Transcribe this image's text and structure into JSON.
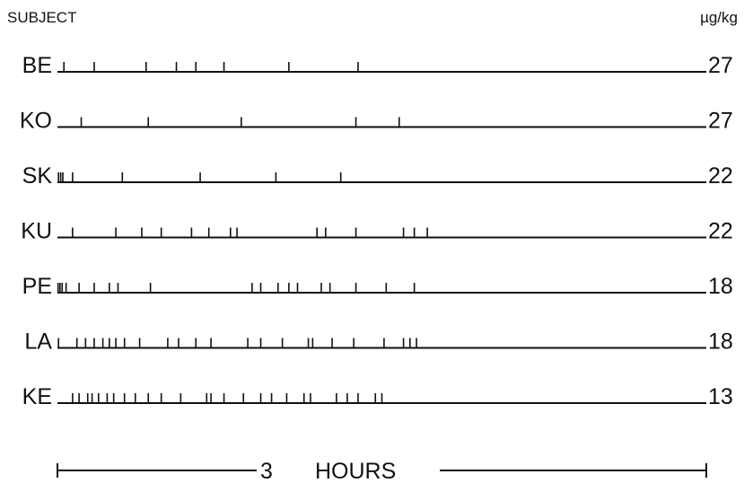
{
  "chart_data": {
    "type": "event-raster",
    "header_left": "SUBJECT",
    "header_right": "µg/kg",
    "x_units": "hours",
    "x_range": [
      0,
      3.0
    ],
    "rows": [
      {
        "subject": "BE",
        "dose": "27",
        "events": [
          0.03,
          0.17,
          0.41,
          0.55,
          0.64,
          0.77,
          1.07,
          1.39
        ]
      },
      {
        "subject": "KO",
        "dose": "27",
        "events": [
          0.11,
          0.42,
          0.85,
          1.38,
          1.58
        ]
      },
      {
        "subject": "SK",
        "dose": "22",
        "events": [
          0.005,
          0.015,
          0.025,
          0.07,
          0.3,
          0.66,
          1.01,
          1.31
        ]
      },
      {
        "subject": "KU",
        "dose": "22",
        "events": [
          0.07,
          0.27,
          0.39,
          0.48,
          0.62,
          0.7,
          0.8,
          0.83,
          1.2,
          1.24,
          1.38,
          1.6,
          1.65,
          1.71
        ]
      },
      {
        "subject": "PE",
        "dose": "18",
        "events": [
          0.003,
          0.012,
          0.022,
          0.04,
          0.1,
          0.17,
          0.24,
          0.28,
          0.43,
          0.9,
          0.94,
          1.02,
          1.07,
          1.11,
          1.22,
          1.26,
          1.38,
          1.52,
          1.65
        ]
      },
      {
        "subject": "LA",
        "dose": "18",
        "events": [
          0.005,
          0.09,
          0.13,
          0.17,
          0.21,
          0.24,
          0.27,
          0.31,
          0.38,
          0.51,
          0.56,
          0.64,
          0.71,
          0.88,
          0.94,
          1.04,
          1.16,
          1.18,
          1.27,
          1.37,
          1.51,
          1.6,
          1.63,
          1.66
        ]
      },
      {
        "subject": "KE",
        "dose": "13",
        "events": [
          0.07,
          0.1,
          0.14,
          0.16,
          0.19,
          0.23,
          0.26,
          0.31,
          0.36,
          0.42,
          0.48,
          0.57,
          0.69,
          0.71,
          0.77,
          0.86,
          0.94,
          0.99,
          1.06,
          1.14,
          1.17,
          1.29,
          1.34,
          1.39,
          1.47,
          1.5
        ]
      }
    ],
    "scale_bar": {
      "value": "3",
      "label": "HOURS",
      "span_hours": 3.0
    }
  }
}
